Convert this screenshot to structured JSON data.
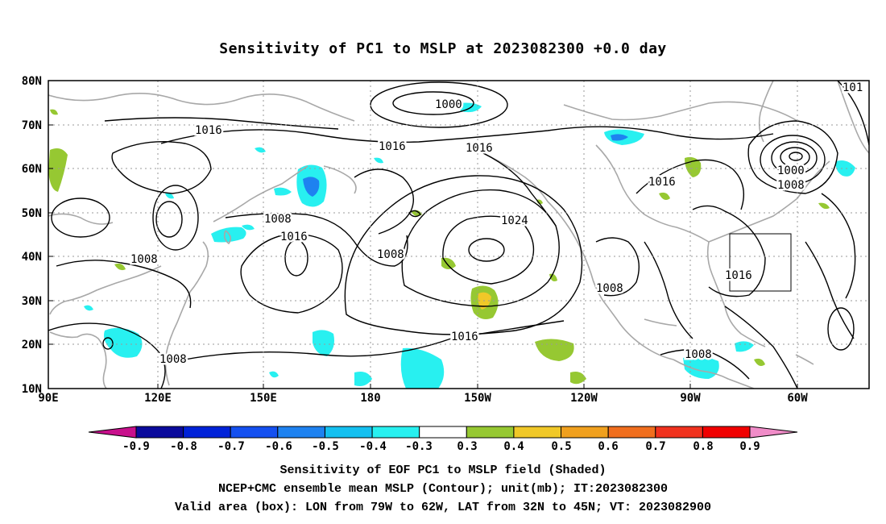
{
  "title": "Sensitivity of PC1 to MSLP at 2023082300 +0.0 day",
  "map": {
    "lat_ticks": [
      "80N",
      "70N",
      "60N",
      "50N",
      "40N",
      "30N",
      "20N",
      "10N"
    ],
    "lon_ticks": [
      "90E",
      "120E",
      "150E",
      "180",
      "150W",
      "120W",
      "90W",
      "60W"
    ],
    "contour_labels": [
      {
        "text": "1000",
        "name": "contour-label-1000-arctic"
      },
      {
        "text": "1016",
        "name": "contour-label-1016-siberia"
      },
      {
        "text": "1016",
        "name": "contour-label-1016-bering"
      },
      {
        "text": "1016",
        "name": "contour-label-1016-alaska"
      },
      {
        "text": "101",
        "name": "contour-label-101-edge"
      },
      {
        "text": "1000",
        "name": "contour-label-1000-labrador"
      },
      {
        "text": "1008",
        "name": "contour-label-1008-labrador"
      },
      {
        "text": "1016",
        "name": "contour-label-1016-canada"
      },
      {
        "text": "1008",
        "name": "contour-label-1008-japan"
      },
      {
        "text": "1016",
        "name": "contour-label-1016-nwpacific"
      },
      {
        "text": "1008",
        "name": "contour-label-1008-china"
      },
      {
        "text": "1008",
        "name": "contour-label-1008-aleutian"
      },
      {
        "text": "1024",
        "name": "contour-label-1024-high"
      },
      {
        "text": "1008",
        "name": "contour-label-1008-southwest-us"
      },
      {
        "text": "1016",
        "name": "contour-label-1016-atlantic"
      },
      {
        "text": "1016",
        "name": "contour-label-1016-subtropical"
      },
      {
        "text": "1008",
        "name": "contour-label-1008-scs"
      },
      {
        "text": "1008",
        "name": "contour-label-1008-mexico"
      }
    ],
    "valid_box": {
      "lon_from": "79W",
      "lon_to": "62W",
      "lat_from": "32N",
      "lat_to": "45N"
    }
  },
  "colorbar": {
    "labels": [
      "-0.9",
      "-0.8",
      "-0.7",
      "-0.6",
      "-0.5",
      "-0.4",
      "-0.3",
      "0.3",
      "0.4",
      "0.5",
      "0.6",
      "0.7",
      "0.8",
      "0.9"
    ],
    "colors": [
      "#c8108c",
      "#0a0a9c",
      "#0022d8",
      "#1450f0",
      "#1e82f0",
      "#14c0f0",
      "#28f0f0",
      "#ffffff",
      "#96c832",
      "#f0c828",
      "#f0a01e",
      "#f06e1e",
      "#f0321e",
      "#f00000",
      "#f08cc8"
    ]
  },
  "captions": {
    "line1": "Sensitivity of EOF PC1 to MSLP field (Shaded)",
    "line2": "NCEP+CMC ensemble mean MSLP (Contour); unit(mb); IT:2023082300",
    "line3": "Valid area (box): LON from 79W to 62W, LAT from 32N to 45N; VT: 2023082900"
  }
}
